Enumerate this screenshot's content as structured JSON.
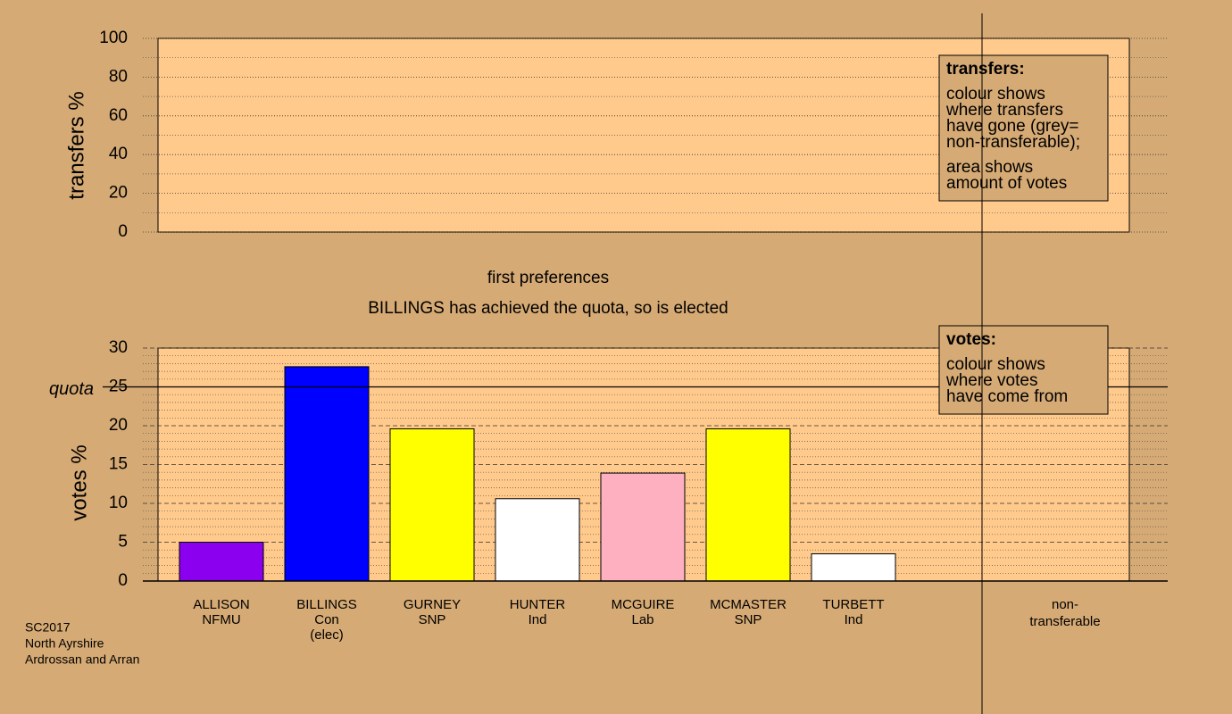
{
  "chart_data": [
    {
      "type": "area",
      "ylabel": "transfers %",
      "ylim": [
        0,
        100
      ],
      "yticks": [
        0,
        20,
        40,
        60,
        80,
        100
      ],
      "minor_yticks": [
        10,
        30,
        50,
        70,
        90
      ],
      "legend": {
        "title": "transfers:",
        "paragraphs": [
          [
            "colour shows",
            "where transfers",
            "have gone (grey=",
            "non-transferable);"
          ],
          [
            "area shows",
            "amount of votes"
          ]
        ]
      }
    },
    {
      "type": "bar",
      "title": "first preferences",
      "subtitle": "BILLINGS has achieved the quota, so is elected",
      "ylabel": "votes %",
      "ylim": [
        0,
        30
      ],
      "yticks": [
        0,
        5,
        10,
        15,
        20,
        25,
        30
      ],
      "minor_yticks": [
        1,
        2,
        3,
        4,
        6,
        7,
        8,
        9,
        11,
        12,
        13,
        14,
        16,
        17,
        18,
        19,
        21,
        22,
        23,
        24,
        26,
        27,
        28,
        29
      ],
      "quota": 25,
      "quota_label": "quota",
      "categories": [
        [
          "ALLISON",
          "NFMU"
        ],
        [
          "BILLINGS",
          "Con",
          "(elec)"
        ],
        [
          "GURNEY",
          "SNP"
        ],
        [
          "HUNTER",
          "Ind"
        ],
        [
          "MCGUIRE",
          "Lab"
        ],
        [
          "MCMASTER",
          "SNP"
        ],
        [
          "TURBETT",
          "Ind"
        ]
      ],
      "values": [
        5.0,
        27.6,
        19.6,
        10.6,
        13.9,
        19.6,
        3.5
      ],
      "colors": [
        "#8b00ee",
        "#0000ff",
        "#ffff00",
        "#ffffff",
        "#ffb0c0",
        "#ffff00",
        "#ffffff"
      ],
      "extra_label": [
        "non-",
        "transferable"
      ],
      "legend": {
        "title": "votes:",
        "paragraphs": [
          [
            "colour shows",
            "where votes",
            "have come from"
          ]
        ]
      }
    }
  ],
  "footer": [
    "SC2017",
    "North Ayrshire",
    "Ardrossan and Arran"
  ]
}
